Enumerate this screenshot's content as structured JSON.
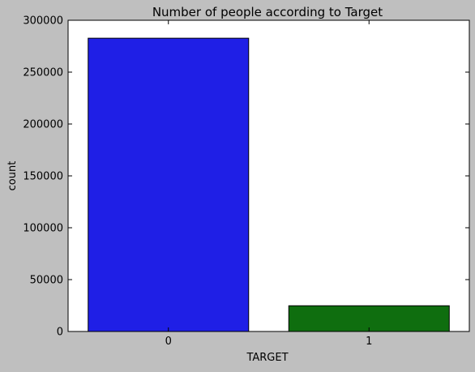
{
  "chart_data": {
    "type": "bar",
    "title": "Number of people according to Target",
    "xlabel": "TARGET",
    "ylabel": "count",
    "categories": [
      "0",
      "1"
    ],
    "values": [
      282700,
      24800
    ],
    "colors": [
      "#1f1fe6",
      "#0f6e0f"
    ],
    "ylim": [
      0,
      300000
    ],
    "yticks": [
      0,
      50000,
      100000,
      150000,
      200000,
      250000,
      300000
    ],
    "ytick_labels": [
      "0",
      "50000",
      "100000",
      "150000",
      "200000",
      "250000",
      "300000"
    ],
    "grid": false,
    "background": "#bfbfbf",
    "plot_background": "#ffffff"
  }
}
